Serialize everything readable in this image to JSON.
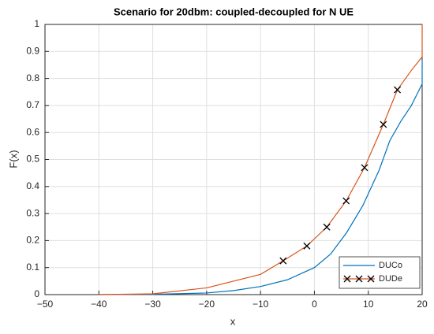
{
  "chart_data": {
    "type": "line",
    "title": "Scenario for 20dbm: coupled-decoupled for N UE",
    "x_label": "x",
    "y_label": "F(x)",
    "xlim": [
      -50,
      20
    ],
    "ylim": [
      0,
      1
    ],
    "xticks": [
      {
        "value": -50,
        "label": "−50"
      },
      {
        "value": -40,
        "label": "−40"
      },
      {
        "value": -30,
        "label": "−30"
      },
      {
        "value": -20,
        "label": "−20"
      },
      {
        "value": -10,
        "label": "−10"
      },
      0,
      10,
      20
    ],
    "yticks": [
      0,
      0.1,
      0.2,
      0.3,
      0.4,
      0.5,
      0.6,
      0.7,
      0.8,
      0.9,
      1
    ],
    "grid": true,
    "legend": "southeast",
    "series": [
      {
        "name": "DUCo",
        "color": "#0072bd",
        "x": [
          -40,
          -30,
          -20,
          -15,
          -10,
          -5,
          0,
          3,
          6,
          9,
          12,
          14,
          16,
          18,
          20,
          20
        ],
        "values": [
          0,
          0.001,
          0.006,
          0.015,
          0.03,
          0.055,
          0.1,
          0.15,
          0.23,
          0.33,
          0.46,
          0.57,
          0.64,
          0.7,
          0.78,
          0.87
        ]
      },
      {
        "name": "DUDe",
        "color": "#d95319",
        "marker": "x",
        "marker_points": [
          4,
          5,
          6,
          7,
          8,
          9,
          10
        ],
        "x": [
          -40,
          -30,
          -20,
          -10,
          -5.8,
          -1.4,
          2.3,
          5.9,
          9.3,
          12.8,
          15.4,
          18,
          20,
          20
        ],
        "values": [
          0,
          0.003,
          0.025,
          0.075,
          0.125,
          0.18,
          0.25,
          0.347,
          0.47,
          0.63,
          0.758,
          0.83,
          0.88,
          1
        ]
      }
    ]
  }
}
